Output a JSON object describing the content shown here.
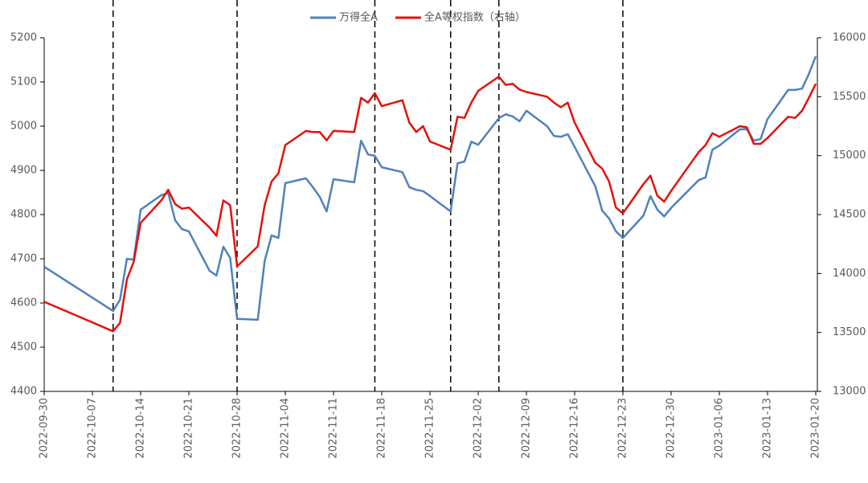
{
  "chart_data": {
    "type": "line",
    "x": [
      "2022-09-30",
      "2022-10-10",
      "2022-10-11",
      "2022-10-12",
      "2022-10-13",
      "2022-10-14",
      "2022-10-17",
      "2022-10-18",
      "2022-10-19",
      "2022-10-20",
      "2022-10-21",
      "2022-10-24",
      "2022-10-25",
      "2022-10-26",
      "2022-10-27",
      "2022-10-28",
      "2022-10-31",
      "2022-11-01",
      "2022-11-02",
      "2022-11-03",
      "2022-11-04",
      "2022-11-07",
      "2022-11-08",
      "2022-11-09",
      "2022-11-10",
      "2022-11-11",
      "2022-11-14",
      "2022-11-15",
      "2022-11-16",
      "2022-11-17",
      "2022-11-18",
      "2022-11-21",
      "2022-11-22",
      "2022-11-23",
      "2022-11-24",
      "2022-11-25",
      "2022-11-28",
      "2022-11-29",
      "2022-11-30",
      "2022-12-01",
      "2022-12-02",
      "2022-12-05",
      "2022-12-06",
      "2022-12-07",
      "2022-12-08",
      "2022-12-09",
      "2022-12-12",
      "2022-12-13",
      "2022-12-14",
      "2022-12-15",
      "2022-12-16",
      "2022-12-19",
      "2022-12-20",
      "2022-12-21",
      "2022-12-22",
      "2022-12-23",
      "2022-12-26",
      "2022-12-27",
      "2022-12-28",
      "2022-12-29",
      "2022-12-30",
      "2023-01-03",
      "2023-01-04",
      "2023-01-05",
      "2023-01-06",
      "2023-01-09",
      "2023-01-10",
      "2023-01-11",
      "2023-01-12",
      "2023-01-13",
      "2023-01-16",
      "2023-01-17",
      "2023-01-18",
      "2023-01-19",
      "2023-01-20"
    ],
    "series": [
      {
        "name": "万得全A",
        "color": "#4f81bd",
        "values": [
          4682,
          4582,
          4607,
          4700,
          4698,
          4811,
          4844,
          4849,
          4787,
          4767,
          4762,
          4673,
          4662,
          4727,
          4702,
          4564,
          4562,
          4695,
          4753,
          4747,
          4871,
          4882,
          4862,
          4840,
          4807,
          4880,
          4873,
          4967,
          4936,
          4933,
          4907,
          4896,
          4862,
          4856,
          4853,
          4842,
          4807,
          4916,
          4920,
          4965,
          4958,
          5018,
          5027,
          5022,
          5011,
          5035,
          5000,
          4978,
          4976,
          4982,
          4953,
          4864,
          4809,
          4791,
          4762,
          4747,
          4798,
          4842,
          4811,
          4796,
          4815,
          4878,
          4884,
          4947,
          4956,
          4993,
          4993,
          4967,
          4971,
          5016,
          5082,
          5082,
          5085,
          5118,
          5158
        ]
      },
      {
        "name": "全A等权指数（右轴）",
        "color": "#e3120b",
        "axis": "y2",
        "values": [
          13760,
          13510,
          13580,
          13950,
          14100,
          14430,
          14620,
          14710,
          14590,
          14550,
          14560,
          14390,
          14320,
          14620,
          14580,
          14060,
          14230,
          14580,
          14780,
          14850,
          15090,
          15210,
          15200,
          15200,
          15130,
          15210,
          15200,
          15490,
          15450,
          15530,
          15420,
          15470,
          15280,
          15200,
          15250,
          15120,
          15050,
          15330,
          15320,
          15450,
          15550,
          15670,
          15600,
          15610,
          15560,
          15540,
          15500,
          15450,
          15410,
          15450,
          15280,
          14940,
          14890,
          14780,
          14560,
          14510,
          14760,
          14830,
          14660,
          14610,
          14700,
          15030,
          15090,
          15190,
          15160,
          15250,
          15240,
          15100,
          15100,
          15150,
          15330,
          15320,
          15380,
          15490,
          15610
        ]
      }
    ],
    "xlim": [
      "2022-09-30",
      "2023-01-20"
    ],
    "xticks": [
      "2022-09-30",
      "2022-10-07",
      "2022-10-14",
      "2022-10-21",
      "2022-10-28",
      "2022-11-04",
      "2022-11-11",
      "2022-11-18",
      "2022-11-25",
      "2022-12-02",
      "2022-12-09",
      "2022-12-16",
      "2022-12-23",
      "2022-12-30",
      "2023-01-06",
      "2023-01-13",
      "2023-01-20"
    ],
    "ylim": [
      4400,
      5200
    ],
    "yticks": [
      4400,
      4500,
      4600,
      4700,
      4800,
      4900,
      5000,
      5100,
      5200
    ],
    "y2lim": [
      13000,
      16000
    ],
    "y2ticks": [
      13000,
      13500,
      14000,
      14500,
      15000,
      15500,
      16000
    ],
    "vlines": [
      "2022-10-10",
      "2022-10-28",
      "2022-11-17",
      "2022-11-28",
      "2022-12-05",
      "2022-12-23"
    ],
    "legend": "top"
  }
}
